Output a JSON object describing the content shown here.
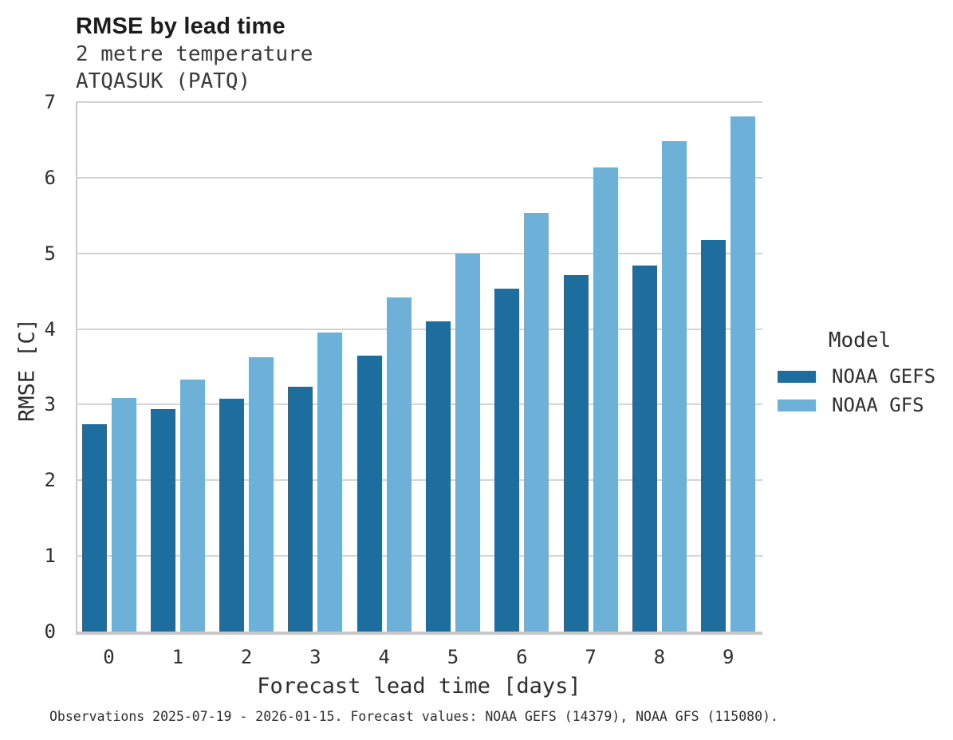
{
  "header": {
    "title": "RMSE by lead time",
    "subtitle_line1": "2 metre temperature",
    "subtitle_line2": "ATQASUK (PATQ)"
  },
  "chart_data": {
    "type": "bar",
    "title": "RMSE by lead time",
    "subtitle": [
      "2 metre temperature",
      "ATQASUK (PATQ)"
    ],
    "xlabel": "Forecast lead time [days]",
    "ylabel": "RMSE [C]",
    "categories": [
      "0",
      "1",
      "2",
      "3",
      "4",
      "5",
      "6",
      "7",
      "8",
      "9"
    ],
    "series": [
      {
        "name": "NOAA GEFS",
        "color": "#1d6e9e",
        "values": [
          2.74,
          2.94,
          3.08,
          3.24,
          3.65,
          4.1,
          4.53,
          4.71,
          4.84,
          5.18
        ]
      },
      {
        "name": "NOAA GFS",
        "color": "#6db1d8",
        "values": [
          3.09,
          3.33,
          3.63,
          3.95,
          4.42,
          5.0,
          5.53,
          6.14,
          6.48,
          6.81
        ]
      }
    ],
    "ylim": [
      0,
      7
    ],
    "yticks": [
      0,
      1,
      2,
      3,
      4,
      5,
      6,
      7
    ],
    "grid": true,
    "legend_title": "Model",
    "legend_position": "right"
  },
  "axes": {
    "x_title": "Forecast lead time [days]",
    "y_title": "RMSE [C]"
  },
  "legend": {
    "title": "Model",
    "items": [
      {
        "label": "NOAA GEFS",
        "color": "#1d6e9e"
      },
      {
        "label": "NOAA GFS",
        "color": "#6db1d8"
      }
    ]
  },
  "footer": {
    "caption": "Observations 2025-07-19 - 2026-01-15. Forecast values: NOAA GEFS (14379), NOAA GFS (115080)."
  },
  "style": {
    "gridline_color": "#d4d4d4",
    "axis_color": "#c8c8c8",
    "text_color": "#2e2e2e",
    "background": "#ffffff"
  }
}
